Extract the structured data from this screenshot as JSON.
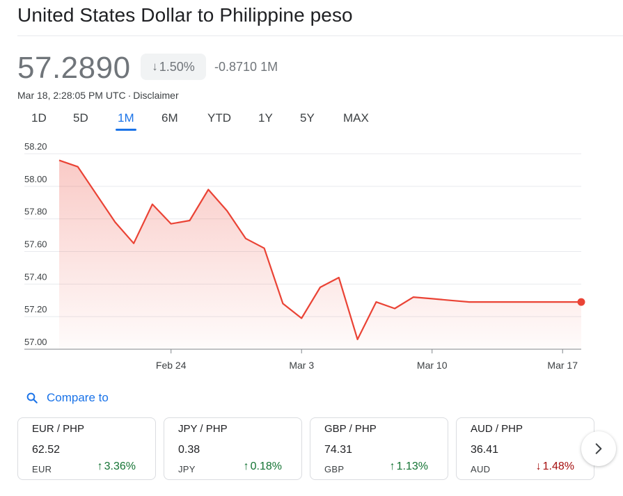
{
  "header": {
    "title": "United States Dollar to Philippine peso"
  },
  "quote": {
    "price": "57.2890",
    "pct_arrow": "↓",
    "pct_change": "1.50%",
    "abs_change": "-0.8710",
    "period": "1M",
    "timestamp": "Mar 18, 2:28:05 PM UTC",
    "separator": "·",
    "disclaimer": "Disclaimer"
  },
  "range_tabs": [
    {
      "label": "1D"
    },
    {
      "label": "5D"
    },
    {
      "label": "1M",
      "active": true
    },
    {
      "label": "6M"
    },
    {
      "label": "YTD"
    },
    {
      "label": "1Y"
    },
    {
      "label": "5Y"
    },
    {
      "label": "MAX"
    }
  ],
  "chart_data": {
    "type": "area",
    "title": "",
    "xlabel": "",
    "ylabel": "",
    "ylim": [
      57.0,
      58.2
    ],
    "y_ticks": [
      "58.20",
      "58.00",
      "57.80",
      "57.60",
      "57.40",
      "57.20",
      "57.00"
    ],
    "x_ticks": [
      "Feb 24",
      "Mar 3",
      "Mar 10",
      "Mar 17"
    ],
    "x_tick_days": [
      6,
      13,
      20,
      27
    ],
    "x_range_days": [
      0,
      28
    ],
    "grid": true,
    "line_color": "#ea4335",
    "fill_color": "#ea4335",
    "series": [
      {
        "x_days": [
          0,
          1,
          3,
          4,
          5,
          6,
          7,
          8,
          9,
          10,
          11,
          12,
          13,
          14,
          15,
          16,
          17,
          18,
          19,
          20,
          21,
          22,
          23,
          24,
          25,
          26,
          27,
          28
        ],
        "values": [
          58.16,
          58.12,
          57.78,
          57.65,
          57.89,
          57.77,
          57.79,
          57.98,
          57.85,
          57.68,
          57.62,
          57.28,
          57.19,
          57.38,
          57.44,
          57.06,
          57.29,
          57.25,
          57.32,
          57.31,
          57.3,
          57.29,
          57.29,
          57.29,
          57.29,
          57.29,
          57.29,
          57.29
        ]
      }
    ]
  },
  "compare": {
    "label": "Compare to",
    "icon": "search-icon"
  },
  "cards": [
    {
      "pair": "EUR / PHP",
      "value": "62.52",
      "currency": "EUR",
      "arrow": "↑",
      "change": "3.36%",
      "direction": "up"
    },
    {
      "pair": "JPY / PHP",
      "value": "0.38",
      "currency": "JPY",
      "arrow": "↑",
      "change": "0.18%",
      "direction": "up"
    },
    {
      "pair": "GBP / PHP",
      "value": "74.31",
      "currency": "GBP",
      "arrow": "↑",
      "change": "1.13%",
      "direction": "up"
    },
    {
      "pair": "AUD / PHP",
      "value": "36.41",
      "currency": "AUD",
      "arrow": "↓",
      "change": "1.48%",
      "direction": "down"
    }
  ],
  "colors": {
    "accent": "#1a73e8",
    "up": "#137333",
    "down": "#a50e0e",
    "line": "#ea4335"
  }
}
